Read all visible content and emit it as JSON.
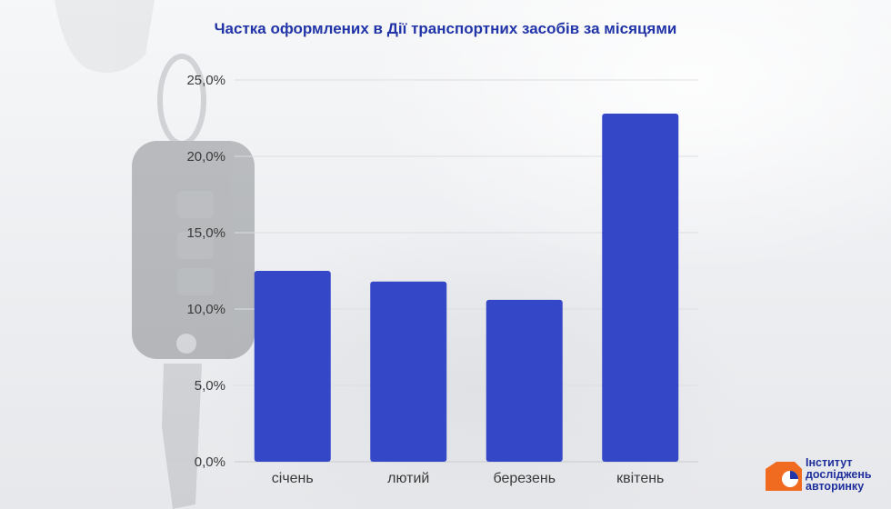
{
  "chart_data": {
    "type": "bar",
    "title": "Частка оформлених в Дії транспортних засобів за місяцями",
    "categories": [
      "січень",
      "лютий",
      "березень",
      "квітень"
    ],
    "values": [
      12.5,
      11.8,
      10.6,
      22.8
    ],
    "ylim": [
      0,
      25
    ],
    "yticks": [
      "0,0%",
      "5,0%",
      "10,0%",
      "15,0%",
      "20,0%",
      "25,0%"
    ],
    "ytick_values": [
      0,
      5,
      10,
      15,
      20,
      25
    ],
    "xlabel": "",
    "ylabel": "",
    "grid": true,
    "bar_color": "#3447c6",
    "title_color": "#2134a8"
  },
  "logo": {
    "line1": "Інститут",
    "line2": "досліджень",
    "line3": "авторинку",
    "accent_color": "#f06a1f"
  }
}
